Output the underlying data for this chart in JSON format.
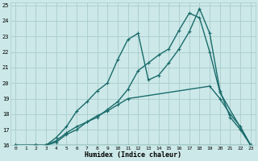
{
  "xlabel": "Humidex (Indice chaleur)",
  "bg_color": "#cce8e8",
  "grid_color": "#aacccc",
  "line_color": "#1a6b6b",
  "xlim": [
    -0.5,
    23.5
  ],
  "ylim": [
    16,
    25.2
  ],
  "xticks": [
    0,
    1,
    2,
    3,
    4,
    5,
    6,
    7,
    8,
    9,
    10,
    11,
    12,
    13,
    14,
    15,
    16,
    17,
    18,
    19,
    20,
    21,
    22,
    23
  ],
  "yticks": [
    16,
    17,
    18,
    19,
    20,
    21,
    22,
    23,
    24,
    25
  ],
  "line1_x": [
    0,
    2,
    3,
    23
  ],
  "line1_y": [
    16,
    16,
    16,
    16
  ],
  "line2_x": [
    0,
    2,
    3,
    4,
    5,
    6,
    7,
    8,
    9,
    10,
    11,
    19,
    20,
    21,
    22,
    23
  ],
  "line2_y": [
    16,
    16,
    16,
    16.3,
    16.8,
    17.2,
    17.5,
    17.9,
    18.2,
    18.6,
    19.0,
    19.8,
    19.0,
    18.0,
    17.2,
    16
  ],
  "line3_x": [
    0,
    2,
    3,
    4,
    5,
    6,
    7,
    8,
    9,
    10,
    11,
    12,
    13,
    14,
    15,
    16,
    17,
    18,
    19,
    20,
    21,
    22,
    23
  ],
  "line3_y": [
    16,
    16,
    16,
    16.5,
    17.2,
    18.2,
    18.8,
    19.5,
    20.0,
    21.5,
    22.8,
    23.2,
    20.2,
    20.5,
    21.3,
    22.2,
    23.3,
    24.8,
    23.2,
    19.5,
    17.8,
    17.0,
    16
  ],
  "line4_x": [
    0,
    2,
    3,
    4,
    5,
    6,
    7,
    8,
    9,
    10,
    11,
    12,
    13,
    14,
    15,
    16,
    17,
    18,
    19,
    20,
    23
  ],
  "line4_y": [
    16,
    16,
    16,
    16.2,
    16.7,
    17.0,
    17.5,
    17.8,
    18.3,
    18.8,
    19.6,
    20.8,
    21.3,
    21.8,
    22.2,
    23.4,
    24.5,
    24.2,
    22.0,
    19.4,
    16
  ]
}
